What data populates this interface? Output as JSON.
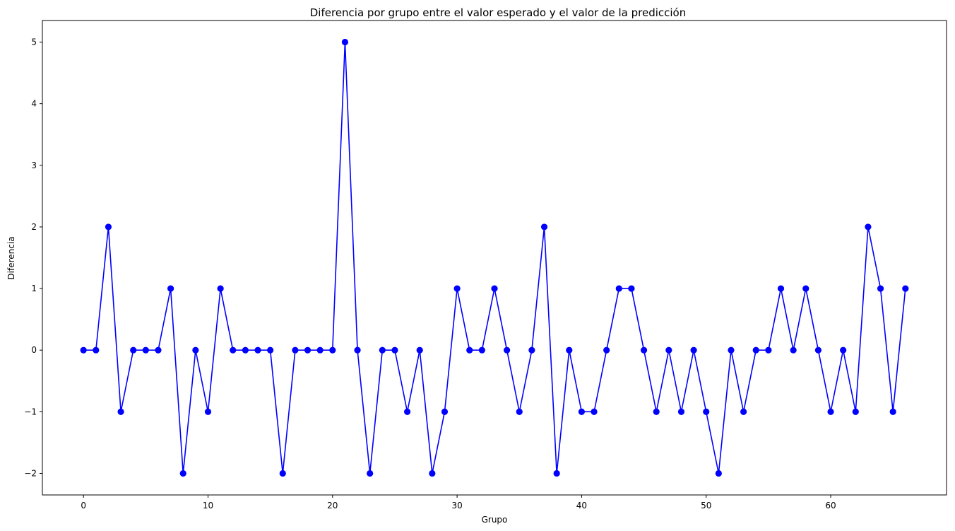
{
  "chart_data": {
    "type": "line",
    "title": "Diferencia por grupo entre el valor esperado y el valor de la predicción",
    "xlabel": "Grupo",
    "ylabel": "Diferencia",
    "xlim": [
      -3.3,
      69.3
    ],
    "ylim": [
      -2.35,
      5.35
    ],
    "xticks": [
      0,
      10,
      20,
      30,
      40,
      50,
      60
    ],
    "xtick_labels": [
      "0",
      "10",
      "20",
      "30",
      "40",
      "50",
      "60"
    ],
    "yticks": [
      -2,
      -1,
      0,
      1,
      2,
      3,
      4,
      5
    ],
    "ytick_labels": [
      "−2",
      "−1",
      "0",
      "1",
      "2",
      "3",
      "4",
      "5"
    ],
    "grid": false,
    "line_color": "#0000ff",
    "marker": "circle",
    "series": [
      {
        "x": [
          0,
          1,
          2,
          3,
          4,
          5,
          6,
          7,
          8,
          9,
          10,
          11,
          12,
          13,
          14,
          15,
          16,
          17,
          18,
          19,
          20,
          21,
          22,
          23,
          24,
          25,
          26,
          27,
          28,
          29,
          30,
          31,
          32,
          33,
          34,
          35,
          36,
          37,
          38,
          39,
          40,
          41,
          42,
          43,
          44,
          45,
          46,
          47,
          48,
          49,
          50,
          51,
          52,
          53,
          54,
          55,
          56,
          57,
          58,
          59,
          60,
          61,
          62,
          63,
          64,
          65,
          66
        ],
        "values": [
          0,
          0,
          2,
          -1,
          0,
          0,
          0,
          1,
          -2,
          0,
          -1,
          1,
          0,
          0,
          0,
          0,
          -2,
          0,
          0,
          0,
          0,
          5,
          0,
          -2,
          0,
          0,
          -1,
          0,
          -2,
          -1,
          1,
          0,
          0,
          1,
          0,
          -1,
          0,
          2,
          -2,
          0,
          -1,
          -1,
          0,
          1,
          1,
          0,
          -1,
          0,
          -1,
          0,
          -1,
          -2,
          0,
          -1,
          0,
          0,
          1,
          0,
          1,
          0,
          -1,
          0,
          -1,
          2,
          1,
          -1,
          1
        ]
      }
    ]
  }
}
